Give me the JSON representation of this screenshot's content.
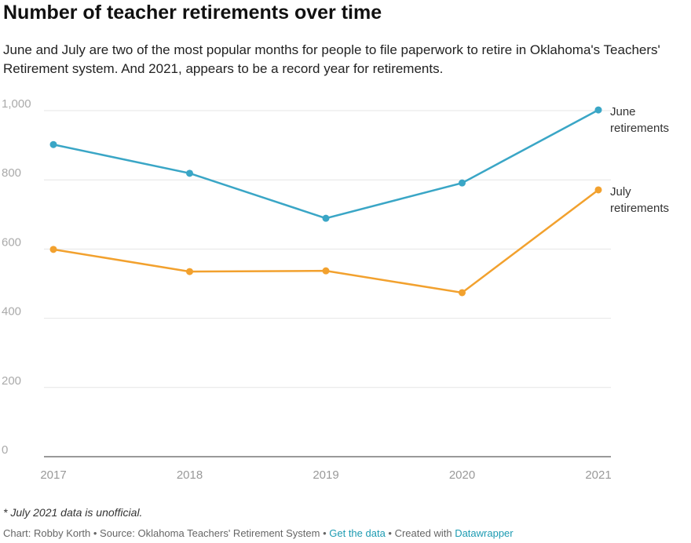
{
  "chart_data": {
    "type": "line",
    "title": "Number of teacher retirements over time",
    "subtitle": "June and July are two of the most popular months for people to file paperwork to retire in Oklahoma's Teachers' Retirement system. And 2021, appears to be a record year for retirements.",
    "x": [
      "2017",
      "2018",
      "2019",
      "2020",
      "2021"
    ],
    "ylim": [
      0,
      1000
    ],
    "yticks": [
      0,
      200,
      400,
      600,
      800,
      1000
    ],
    "ytick_labels": [
      "0",
      "200",
      "400",
      "600",
      "800",
      "1,000"
    ],
    "grid": true,
    "series": [
      {
        "name": "June",
        "label_lines": [
          "June",
          "retirements"
        ],
        "color": "#3aa6c6",
        "values": [
          902,
          819,
          689,
          791,
          1002
        ]
      },
      {
        "name": "July",
        "label_lines": [
          "July",
          "retirements"
        ],
        "color": "#f2a12e",
        "values": [
          599,
          535,
          537,
          474,
          771
        ]
      }
    ],
    "note": "* July 2021 data is unofficial."
  },
  "footer": {
    "prefix": "Chart: Robby Korth • Source: Oklahoma Teachers' Retirement System • ",
    "get_data": "Get the data",
    "mid": " • Created with ",
    "datawrapper": "Datawrapper"
  }
}
